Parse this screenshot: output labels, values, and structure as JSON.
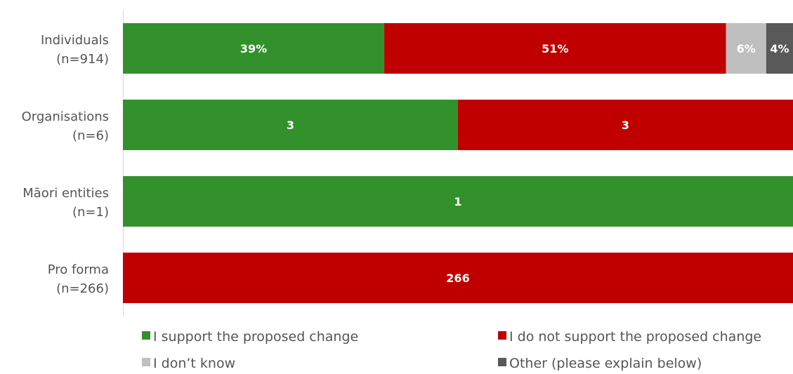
{
  "chart_data": {
    "type": "bar",
    "orientation": "horizontal",
    "stacked": true,
    "normalized": true,
    "categories": [
      [
        "Individuals",
        "(n=914)"
      ],
      [
        "Organisations",
        "(n=6)"
      ],
      [
        "Māori entities",
        "(n=1)"
      ],
      [
        "Pro forma",
        "(n=266)"
      ]
    ],
    "series": [
      {
        "name": "I support the proposed change",
        "color": "#33912c",
        "values": [
          39,
          50,
          100,
          0
        ],
        "labels": [
          "39%",
          "3",
          "1",
          ""
        ]
      },
      {
        "name": "I do not support the proposed change",
        "color": "#c00000",
        "values": [
          51,
          50,
          0,
          100
        ],
        "labels": [
          "51%",
          "3",
          "",
          "266"
        ]
      },
      {
        "name": "I don’t know",
        "color": "#bfbfbf",
        "values": [
          6,
          0,
          0,
          0
        ],
        "labels": [
          "6%",
          "",
          "",
          ""
        ]
      },
      {
        "name": "Other (please explain below)",
        "color": "#595959",
        "values": [
          4,
          0,
          0,
          0
        ],
        "labels": [
          "4%",
          "",
          "",
          ""
        ]
      }
    ],
    "xlim": [
      0,
      100
    ],
    "grid": false,
    "legend_position": "bottom",
    "title": "",
    "xlabel": "",
    "ylabel": ""
  }
}
